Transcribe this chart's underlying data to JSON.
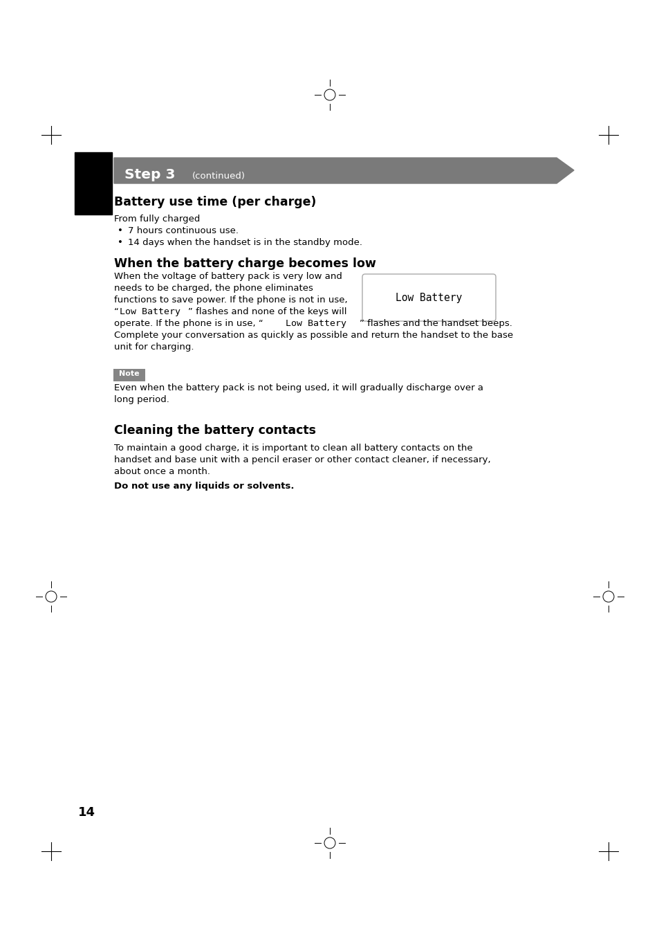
{
  "page_bg": "#ffffff",
  "page_number": "14",
  "step_banner_text": "Step 3",
  "step_banner_continued": "(continued)",
  "step_banner_bg": "#7a7a7a",
  "step_banner_text_color": "#ffffff",
  "black_block_color": "#000000",
  "section1_title": "Battery use time (per charge)",
  "section1_intro": "From fully charged",
  "section1_bullet1": "7 hours continuous use.",
  "section1_bullet2": "14 days when the handset is in the standby mode.",
  "section2_title": "When the battery charge becomes low",
  "body_line1": "When the voltage of battery pack is very low and",
  "body_line2": "needs to be charged, the phone eliminates",
  "body_line3": "functions to save power. If the phone is not in use,",
  "body_line4_normal": "“",
  "body_line4_mono": "Low Battery",
  "body_line4_end": "” flashes and none of the keys will",
  "body_line5_pre": "operate. If the phone is in use, “",
  "body_line5_mono": "Low Battery",
  "body_line5_post": "” flashes and the handset beeps.",
  "body_line6": "Complete your conversation as quickly as possible and return the handset to the base",
  "body_line7": "unit for charging.",
  "lcd_display_text": "Low Battery",
  "note_label": "Note",
  "note_bg": "#858585",
  "note_text_line1": "Even when the battery pack is not being used, it will gradually discharge over a",
  "note_text_line2": "long period.",
  "section3_title": "Cleaning the battery contacts",
  "section3_line1": "To maintain a good charge, it is important to clean all battery contacts on the",
  "section3_line2": "handset and base unit with a pencil eraser or other contact cleaner, if necessary,",
  "section3_line3": "about once a month.",
  "section3_bold": "Do not use any liquids or solvents."
}
